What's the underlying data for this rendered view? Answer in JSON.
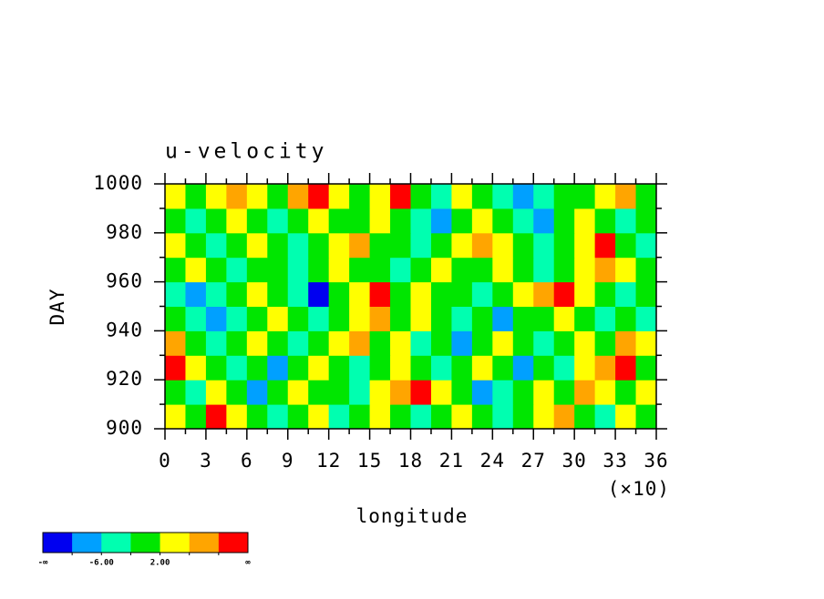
{
  "chart_data": {
    "type": "heatmap",
    "title": "u-velocity",
    "xlabel": "longitude",
    "ylabel": "DAY",
    "x_multiplier": "(×10)",
    "xlim": [
      0,
      36
    ],
    "xticks": [
      0,
      3,
      6,
      9,
      12,
      15,
      18,
      21,
      24,
      27,
      30,
      33,
      36
    ],
    "xminorticks": [
      1.5,
      4.5,
      7.5,
      10.5,
      13.5,
      16.5,
      19.5,
      22.5,
      25.5,
      28.5,
      31.5,
      34.5
    ],
    "ylim": [
      900,
      1000
    ],
    "yticks": [
      900,
      920,
      940,
      960,
      980,
      1000
    ],
    "yminorticks": [
      910,
      930,
      950,
      970,
      990
    ],
    "x": [
      0.75,
      2.25,
      3.75,
      5.25,
      6.75,
      8.25,
      9.75,
      11.25,
      12.75,
      14.25,
      15.75,
      17.25,
      18.75,
      20.25,
      21.75,
      23.25,
      24.75,
      26.25,
      27.75,
      29.25,
      30.75,
      32.25,
      33.75,
      35.25
    ],
    "y": [
      905,
      915,
      925,
      935,
      945,
      955,
      965,
      975,
      985,
      995
    ],
    "z": [
      [
        4,
        0,
        12,
        4,
        0,
        -4,
        0,
        4,
        -4,
        0,
        4,
        0,
        -4,
        0,
        4,
        0,
        -4,
        0,
        4,
        8,
        0,
        -4,
        4,
        0
      ],
      [
        0,
        -4,
        4,
        0,
        -8,
        0,
        4,
        0,
        0,
        -4,
        4,
        8,
        12,
        4,
        0,
        -8,
        -4,
        0,
        4,
        0,
        8,
        4,
        0,
        4
      ],
      [
        12,
        4,
        0,
        -4,
        0,
        -8,
        0,
        4,
        0,
        -4,
        0,
        4,
        0,
        -4,
        0,
        4,
        0,
        -8,
        0,
        -4,
        4,
        8,
        12,
        0
      ],
      [
        8,
        0,
        -4,
        0,
        4,
        0,
        -4,
        0,
        4,
        8,
        0,
        4,
        -4,
        0,
        -8,
        0,
        4,
        0,
        -4,
        0,
        4,
        0,
        8,
        4
      ],
      [
        0,
        -4,
        -8,
        -4,
        0,
        4,
        0,
        -4,
        0,
        4,
        8,
        0,
        4,
        0,
        -4,
        0,
        -8,
        0,
        0,
        4,
        0,
        -4,
        0,
        -4
      ],
      [
        -4,
        -8,
        -4,
        0,
        4,
        0,
        -4,
        -12,
        0,
        4,
        12,
        0,
        4,
        0,
        0,
        -4,
        0,
        4,
        8,
        12,
        4,
        0,
        -4,
        0
      ],
      [
        0,
        4,
        0,
        -4,
        0,
        0,
        -4,
        0,
        4,
        0,
        0,
        -4,
        0,
        4,
        0,
        0,
        4,
        0,
        -4,
        0,
        4,
        8,
        4,
        0
      ],
      [
        4,
        0,
        -4,
        0,
        4,
        0,
        -4,
        0,
        4,
        8,
        0,
        0,
        -4,
        0,
        4,
        8,
        4,
        0,
        -4,
        0,
        4,
        12,
        0,
        -4
      ],
      [
        0,
        -4,
        0,
        4,
        0,
        -4,
        0,
        4,
        0,
        0,
        4,
        0,
        -4,
        -8,
        0,
        4,
        0,
        -4,
        -8,
        0,
        4,
        0,
        -4,
        0
      ],
      [
        4,
        0,
        4,
        8,
        4,
        0,
        8,
        12,
        4,
        0,
        4,
        12,
        0,
        -4,
        4,
        0,
        -4,
        -8,
        -4,
        0,
        0,
        4,
        8,
        0
      ]
    ],
    "colorbar": {
      "levels": [
        -10,
        -6,
        -2,
        2,
        6,
        10
      ],
      "colors": [
        "#0000f0",
        "#00a0ff",
        "#00ffb0",
        "#00e600",
        "#ffff00",
        "#ffa500",
        "#ff0000"
      ],
      "ticks": [
        {
          "value": -6,
          "label": "-6.00"
        },
        {
          "value": 2,
          "label": "2.00"
        }
      ],
      "low_label": "-∞",
      "high_label": "∞"
    }
  }
}
